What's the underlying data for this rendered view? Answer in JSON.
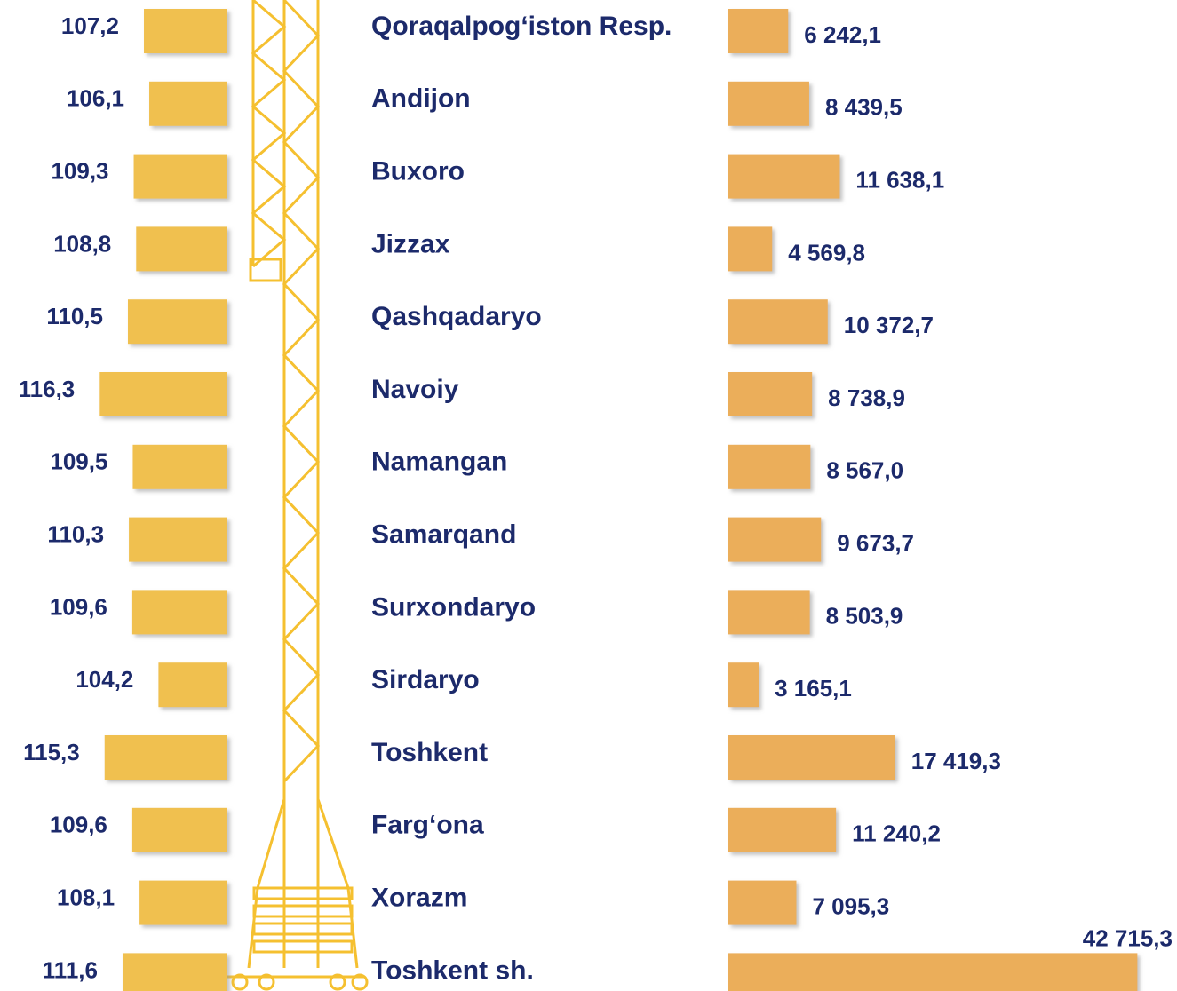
{
  "chart_data": [
    {
      "type": "bar",
      "orientation": "horizontal-left",
      "color": "#f0c050",
      "xlim": [
        90,
        118
      ],
      "values": [
        107.2,
        106.1,
        109.3,
        108.8,
        110.5,
        116.3,
        109.5,
        110.3,
        109.6,
        104.2,
        115.3,
        109.6,
        108.1,
        111.6
      ],
      "value_labels": [
        "107,2",
        "106,1",
        "109,3",
        "108,8",
        "110,5",
        "116,3",
        "109,5",
        "110,3",
        "109,6",
        "104,2",
        "115,3",
        "109,6",
        "108,1",
        "111,6"
      ]
    },
    {
      "type": "bar",
      "orientation": "horizontal",
      "color": "#ebae5a",
      "xlim": [
        0,
        45000
      ],
      "categories": [
        "Qoraqalpog‘iston Resp.",
        "Andijon",
        "Buxoro",
        "Jizzax",
        "Qashqadaryo",
        "Navoiy",
        "Namangan",
        "Samarqand",
        "Surxondaryo",
        "Sirdaryo",
        "Toshkent",
        "Farg‘ona",
        "Xorazm",
        "Toshkent sh."
      ],
      "values": [
        6242.1,
        8439.5,
        11638.1,
        4569.8,
        10372.7,
        8738.9,
        8567.0,
        9673.7,
        8503.9,
        3165.1,
        17419.3,
        11240.2,
        7095.3,
        42715.3
      ],
      "value_labels": [
        "6 242,1",
        "8 439,5",
        "11 638,1",
        "4 569,8",
        "10 372,7",
        "8 738,9",
        "8 567,0",
        "9 673,7",
        "8 503,9",
        "3 165,1",
        "17 419,3",
        "11 240,2",
        "7 095,3",
        "42 715,3"
      ]
    }
  ]
}
